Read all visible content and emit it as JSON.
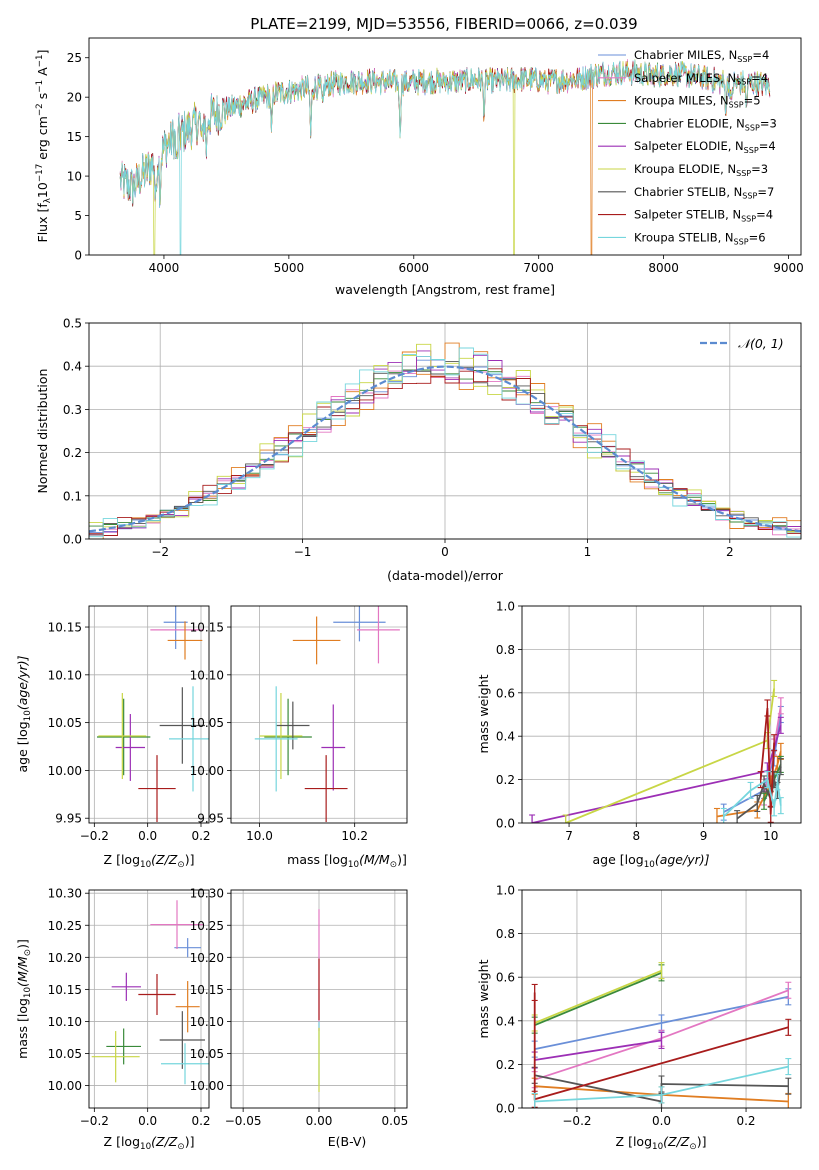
{
  "figure_title": "PLATE=2199, MJD=53556, FIBERID=0066, z=0.039",
  "series": [
    {
      "name": "Chabrier MILES, N",
      "sub": "SSP",
      "suffix": "=4",
      "color": "#6a8fd8"
    },
    {
      "name": "Salpeter MILES, N",
      "sub": "SSP",
      "suffix": "=4",
      "color": "#e377c2"
    },
    {
      "name": "Kroupa MILES, N",
      "sub": "SSP",
      "suffix": "=5",
      "color": "#e07d22"
    },
    {
      "name": "Chabrier ELODIE, N",
      "sub": "SSP",
      "suffix": "=3",
      "color": "#3a8a3a"
    },
    {
      "name": "Salpeter ELODIE, N",
      "sub": "SSP",
      "suffix": "=4",
      "color": "#9c2fb5"
    },
    {
      "name": "Kroupa ELODIE, N",
      "sub": "SSP",
      "suffix": "=3",
      "color": "#c8d645"
    },
    {
      "name": "Chabrier STELIB, N",
      "sub": "SSP",
      "suffix": "=7",
      "color": "#555555"
    },
    {
      "name": "Salpeter STELIB, N",
      "sub": "SSP",
      "suffix": "=4",
      "color": "#a81c1c"
    },
    {
      "name": "Kroupa STELIB, N",
      "sub": "SSP",
      "suffix": "=6",
      "color": "#76d6dd"
    }
  ],
  "chart_data": [
    {
      "id": "spectrum",
      "type": "line",
      "xlabel": "wavelength [Angstrom, rest frame]",
      "ylabel_parts": [
        "Flux [f",
        "λ",
        "10",
        "−17",
        " erg cm",
        "−2",
        " s",
        "−1",
        " A",
        "−1",
        "]"
      ],
      "xlim": [
        3400,
        9100
      ],
      "ylim": [
        0,
        27.5
      ],
      "xticks": [
        4000,
        5000,
        6000,
        7000,
        8000,
        9000
      ],
      "yticks": [
        0,
        5,
        10,
        15,
        20,
        25
      ],
      "grid": false,
      "legend": "top-right",
      "continuum_x": [
        3650,
        3750,
        3850,
        3950,
        4050,
        4150,
        4250,
        4350,
        4500,
        4700,
        4900,
        5100,
        5300,
        5500,
        5700,
        5900,
        6100,
        6300,
        6500,
        6700,
        6900,
        7100,
        7300,
        7500,
        7700,
        7900,
        8100,
        8300,
        8500,
        8700,
        8850
      ],
      "continuum_y": [
        9.5,
        8.5,
        10.5,
        12.5,
        14.5,
        15.5,
        16.5,
        17.5,
        18.5,
        19.5,
        20.5,
        21.0,
        21.5,
        22.0,
        22.0,
        21.8,
        22.0,
        22.0,
        22.2,
        22.0,
        22.3,
        22.0,
        22.3,
        23.0,
        23.2,
        22.8,
        23.0,
        22.5,
        21.8,
        21.8,
        21.5
      ],
      "absorption_lines": [
        [
          3934,
          6
        ],
        [
          3969,
          5
        ],
        [
          4102,
          4
        ],
        [
          4304,
          3
        ],
        [
          4340,
          4
        ],
        [
          4861,
          5
        ],
        [
          5175,
          6
        ],
        [
          5270,
          3
        ],
        [
          5890,
          6
        ],
        [
          6563,
          4
        ],
        [
          8498,
          3
        ],
        [
          8542,
          3
        ],
        [
          8662,
          3
        ]
      ],
      "dropouts": [
        {
          "series": 5,
          "x": 6800
        },
        {
          "series": 2,
          "x": 7420
        },
        {
          "series": 8,
          "x": 4130
        },
        {
          "series": 5,
          "x": 3920
        }
      ]
    },
    {
      "id": "residuals",
      "type": "histogram",
      "xlabel": "(data-model)/error",
      "ylabel": "Normed distribution",
      "xlim": [
        -2.5,
        2.5
      ],
      "ylim": [
        0,
        0.5
      ],
      "xticks": [
        -2,
        -1,
        0,
        1,
        2
      ],
      "yticks": [
        0.0,
        0.1,
        0.2,
        0.3,
        0.4,
        0.5
      ],
      "grid": true,
      "legend": "top-right",
      "reference_label": "𝒩(0, 1)",
      "reference_color": "#5b8bd0",
      "bin_width": 0.1
    },
    {
      "id": "age_vs_Z",
      "type": "errorbar",
      "xlabel_parts": [
        "Z [log",
        "10",
        "(Z/Z",
        "⊙",
        ")]"
      ],
      "ylabel_parts": [
        "age  [log",
        "10",
        "(age/yr)]"
      ],
      "xlim": [
        -0.22,
        0.23
      ],
      "ylim": [
        9.945,
        10.172
      ],
      "xticks": [
        -0.2,
        0.0,
        0.2
      ],
      "yticks": [
        9.95,
        10.0,
        10.05,
        10.1,
        10.15
      ],
      "grid": true,
      "points": [
        {
          "s": 0,
          "x": 0.105,
          "y": 10.155,
          "xe": 0.045,
          "ye": 0.028
        },
        {
          "s": 1,
          "x": 0.11,
          "y": 10.147,
          "xe": 0.1,
          "ye": 0.0
        },
        {
          "s": 2,
          "x": 0.14,
          "y": 10.136,
          "xe": 0.065,
          "ye": 0.02
        },
        {
          "s": 3,
          "x": -0.09,
          "y": 10.035,
          "xe": 0.1,
          "ye": 0.04
        },
        {
          "s": 4,
          "x": -0.065,
          "y": 10.024,
          "xe": 0.055,
          "ye": 0.035
        },
        {
          "s": 5,
          "x": -0.095,
          "y": 10.036,
          "xe": 0.09,
          "ye": 0.045
        },
        {
          "s": 6,
          "x": 0.13,
          "y": 10.047,
          "xe": 0.085,
          "ye": 0.04
        },
        {
          "s": 7,
          "x": 0.035,
          "y": 9.981,
          "xe": 0.07,
          "ye": 0.035
        },
        {
          "s": 8,
          "x": 0.17,
          "y": 10.033,
          "xe": 0.09,
          "ye": 0.055
        }
      ]
    },
    {
      "id": "age_vs_mass",
      "type": "errorbar",
      "xlabel_parts": [
        "mass [log",
        "10",
        "(M/M",
        "⊙",
        ")]"
      ],
      "xlim": [
        9.94,
        10.31
      ],
      "ylim": [
        9.945,
        10.172
      ],
      "xticks": [
        10.0,
        10.2
      ],
      "yticks": [
        9.95,
        10.0,
        10.05,
        10.1,
        10.15
      ],
      "grid": true,
      "points": [
        {
          "s": 0,
          "x": 10.21,
          "y": 10.155,
          "xe": 0.055,
          "ye": 0.02
        },
        {
          "s": 1,
          "x": 10.25,
          "y": 10.147,
          "xe": 0.045,
          "ye": 0.035
        },
        {
          "s": 2,
          "x": 10.12,
          "y": 10.136,
          "xe": 0.05,
          "ye": 0.025
        },
        {
          "s": 3,
          "x": 10.06,
          "y": 10.035,
          "xe": 0.05,
          "ye": 0.04
        },
        {
          "s": 4,
          "x": 10.155,
          "y": 10.024,
          "xe": 0.025,
          "ye": 0.045
        },
        {
          "s": 5,
          "x": 10.045,
          "y": 10.036,
          "xe": 0.045,
          "ye": 0.045
        },
        {
          "s": 6,
          "x": 10.07,
          "y": 10.047,
          "xe": 0.035,
          "ye": 0.025
        },
        {
          "s": 7,
          "x": 10.14,
          "y": 9.981,
          "xe": 0.045,
          "ye": 0.035
        },
        {
          "s": 8,
          "x": 10.035,
          "y": 10.033,
          "xe": 0.045,
          "ye": 0.055
        }
      ]
    },
    {
      "id": "mass_weight_vs_age",
      "type": "line",
      "xlabel_parts": [
        "age  [log",
        "10",
        "(age/yr)]"
      ],
      "ylabel": "mass weight",
      "xlim": [
        6.3,
        10.45
      ],
      "ylim": [
        0,
        1.0
      ],
      "xticks": [
        7,
        8,
        9,
        10
      ],
      "yticks": [
        0.0,
        0.2,
        0.4,
        0.6,
        0.8,
        1.0
      ],
      "grid": true,
      "lines": [
        {
          "s": 0,
          "x": [
            9.3,
            9.9,
            10.05,
            10.15
          ],
          "y": [
            0.05,
            0.15,
            0.3,
            0.5
          ]
        },
        {
          "s": 1,
          "x": [
            9.9,
            10.05,
            10.15
          ],
          "y": [
            0.12,
            0.35,
            0.54
          ]
        },
        {
          "s": 2,
          "x": [
            9.2,
            9.8,
            10.0,
            10.1,
            10.15
          ],
          "y": [
            0.03,
            0.06,
            0.18,
            0.27,
            0.33
          ]
        },
        {
          "s": 3,
          "x": [
            9.9,
            10.05,
            10.15
          ],
          "y": [
            0.1,
            0.2,
            0.27
          ]
        },
        {
          "s": 4,
          "x": [
            6.45,
            9.95,
            10.15
          ],
          "y": [
            0.0,
            0.24,
            0.45
          ]
        },
        {
          "s": 5,
          "x": [
            6.95,
            9.95,
            10.05
          ],
          "y": [
            0.0,
            0.38,
            0.62
          ]
        },
        {
          "s": 6,
          "x": [
            9.5,
            9.8,
            9.9,
            10.0,
            10.05,
            10.1,
            10.15
          ],
          "y": [
            0.02,
            0.09,
            0.18,
            0.11,
            0.2,
            0.15,
            0.26
          ]
        },
        {
          "s": 7,
          "x": [
            9.85,
            9.95,
            10.0,
            10.05
          ],
          "y": [
            0.2,
            0.53,
            0.04,
            0.37
          ]
        },
        {
          "s": 8,
          "x": [
            9.3,
            9.7,
            9.95,
            10.05,
            10.1,
            10.15
          ],
          "y": [
            0.03,
            0.15,
            0.2,
            0.07,
            0.19,
            0.08
          ]
        }
      ]
    },
    {
      "id": "mass_vs_Z",
      "type": "errorbar",
      "xlabel_parts": [
        "Z [log",
        "10",
        "(Z/Z",
        "⊙",
        ")]"
      ],
      "ylabel_parts": [
        "mass [log",
        "10",
        "(M/M",
        "⊙",
        ")]"
      ],
      "xlim": [
        -0.22,
        0.23
      ],
      "ylim": [
        9.965,
        10.305
      ],
      "xticks": [
        -0.2,
        0.0,
        0.2
      ],
      "yticks": [
        10.0,
        10.05,
        10.1,
        10.15,
        10.2,
        10.25,
        10.3
      ],
      "grid": true,
      "points": [
        {
          "s": 0,
          "x": 0.15,
          "y": 10.215,
          "xe": 0.05,
          "ye": 0.015
        },
        {
          "s": 1,
          "x": 0.11,
          "y": 10.251,
          "xe": 0.1,
          "ye": 0.038
        },
        {
          "s": 2,
          "x": 0.15,
          "y": 10.123,
          "xe": 0.045,
          "ye": 0.04
        },
        {
          "s": 3,
          "x": -0.09,
          "y": 10.061,
          "xe": 0.065,
          "ye": 0.028
        },
        {
          "s": 4,
          "x": -0.08,
          "y": 10.154,
          "xe": 0.055,
          "ye": 0.022
        },
        {
          "s": 5,
          "x": -0.12,
          "y": 10.045,
          "xe": 0.09,
          "ye": 0.04
        },
        {
          "s": 6,
          "x": 0.13,
          "y": 10.071,
          "xe": 0.085,
          "ye": 0.045
        },
        {
          "s": 7,
          "x": 0.035,
          "y": 10.142,
          "xe": 0.07,
          "ye": 0.032
        },
        {
          "s": 8,
          "x": 0.14,
          "y": 10.034,
          "xe": 0.09,
          "ye": 0.032
        }
      ]
    },
    {
      "id": "mass_vs_EBV",
      "type": "errorbar",
      "xlabel": "E(B-V)",
      "xlim": [
        -0.058,
        0.058
      ],
      "ylim": [
        9.965,
        10.305
      ],
      "xticks": [
        -0.05,
        0.0,
        0.05
      ],
      "yticks": [
        10.0,
        10.05,
        10.1,
        10.15,
        10.2,
        10.25,
        10.3
      ],
      "grid": true,
      "points": [
        {
          "s": 1,
          "x": 0.0,
          "y": 10.18,
          "xe": 0.0,
          "ye": 0.095
        },
        {
          "s": 7,
          "x": 0.0,
          "y": 10.15,
          "xe": 0.0,
          "ye": 0.048
        },
        {
          "s": 8,
          "x": 0.0,
          "y": 10.05,
          "xe": 0.0,
          "ye": 0.05
        },
        {
          "s": 5,
          "x": 0.0,
          "y": 10.04,
          "xe": 0.0,
          "ye": 0.05
        }
      ]
    },
    {
      "id": "mass_weight_vs_Z",
      "type": "line",
      "xlabel_parts": [
        "Z [log",
        "10",
        "(Z/Z",
        "⊙",
        ")]"
      ],
      "ylabel": "mass weight",
      "xlim": [
        -0.33,
        0.33
      ],
      "ylim": [
        0,
        1.0
      ],
      "xticks": [
        -0.2,
        0.0,
        0.2
      ],
      "yticks": [
        0.0,
        0.2,
        0.4,
        0.6,
        0.8,
        1.0
      ],
      "grid": true,
      "lines": [
        {
          "s": 0,
          "x": [
            -0.3,
            0.0,
            0.3
          ],
          "y": [
            0.27,
            0.39,
            0.51
          ]
        },
        {
          "s": 1,
          "x": [
            -0.3,
            0.0,
            0.3
          ],
          "y": [
            0.13,
            0.32,
            0.54
          ]
        },
        {
          "s": 2,
          "x": [
            -0.3,
            0.0,
            0.3
          ],
          "y": [
            0.1,
            0.06,
            0.03
          ]
        },
        {
          "s": 3,
          "x": [
            -0.3,
            0.0
          ],
          "y": [
            0.38,
            0.62
          ]
        },
        {
          "s": 4,
          "x": [
            -0.3,
            0.0
          ],
          "y": [
            0.22,
            0.31
          ]
        },
        {
          "s": 5,
          "x": [
            -0.3,
            0.0
          ],
          "y": [
            0.39,
            0.63
          ]
        },
        {
          "s": 6,
          "x": [
            -0.3,
            0.0,
            0.0,
            0.3
          ],
          "y": [
            0.15,
            0.03,
            0.11,
            0.1
          ]
        },
        {
          "s": 7,
          "x": [
            -0.3,
            -0.3,
            0.3
          ],
          "y": [
            0.53,
            0.04,
            0.37
          ]
        },
        {
          "s": 8,
          "x": [
            -0.3,
            0.0,
            0.3
          ],
          "y": [
            0.03,
            0.06,
            0.19
          ]
        }
      ]
    }
  ]
}
